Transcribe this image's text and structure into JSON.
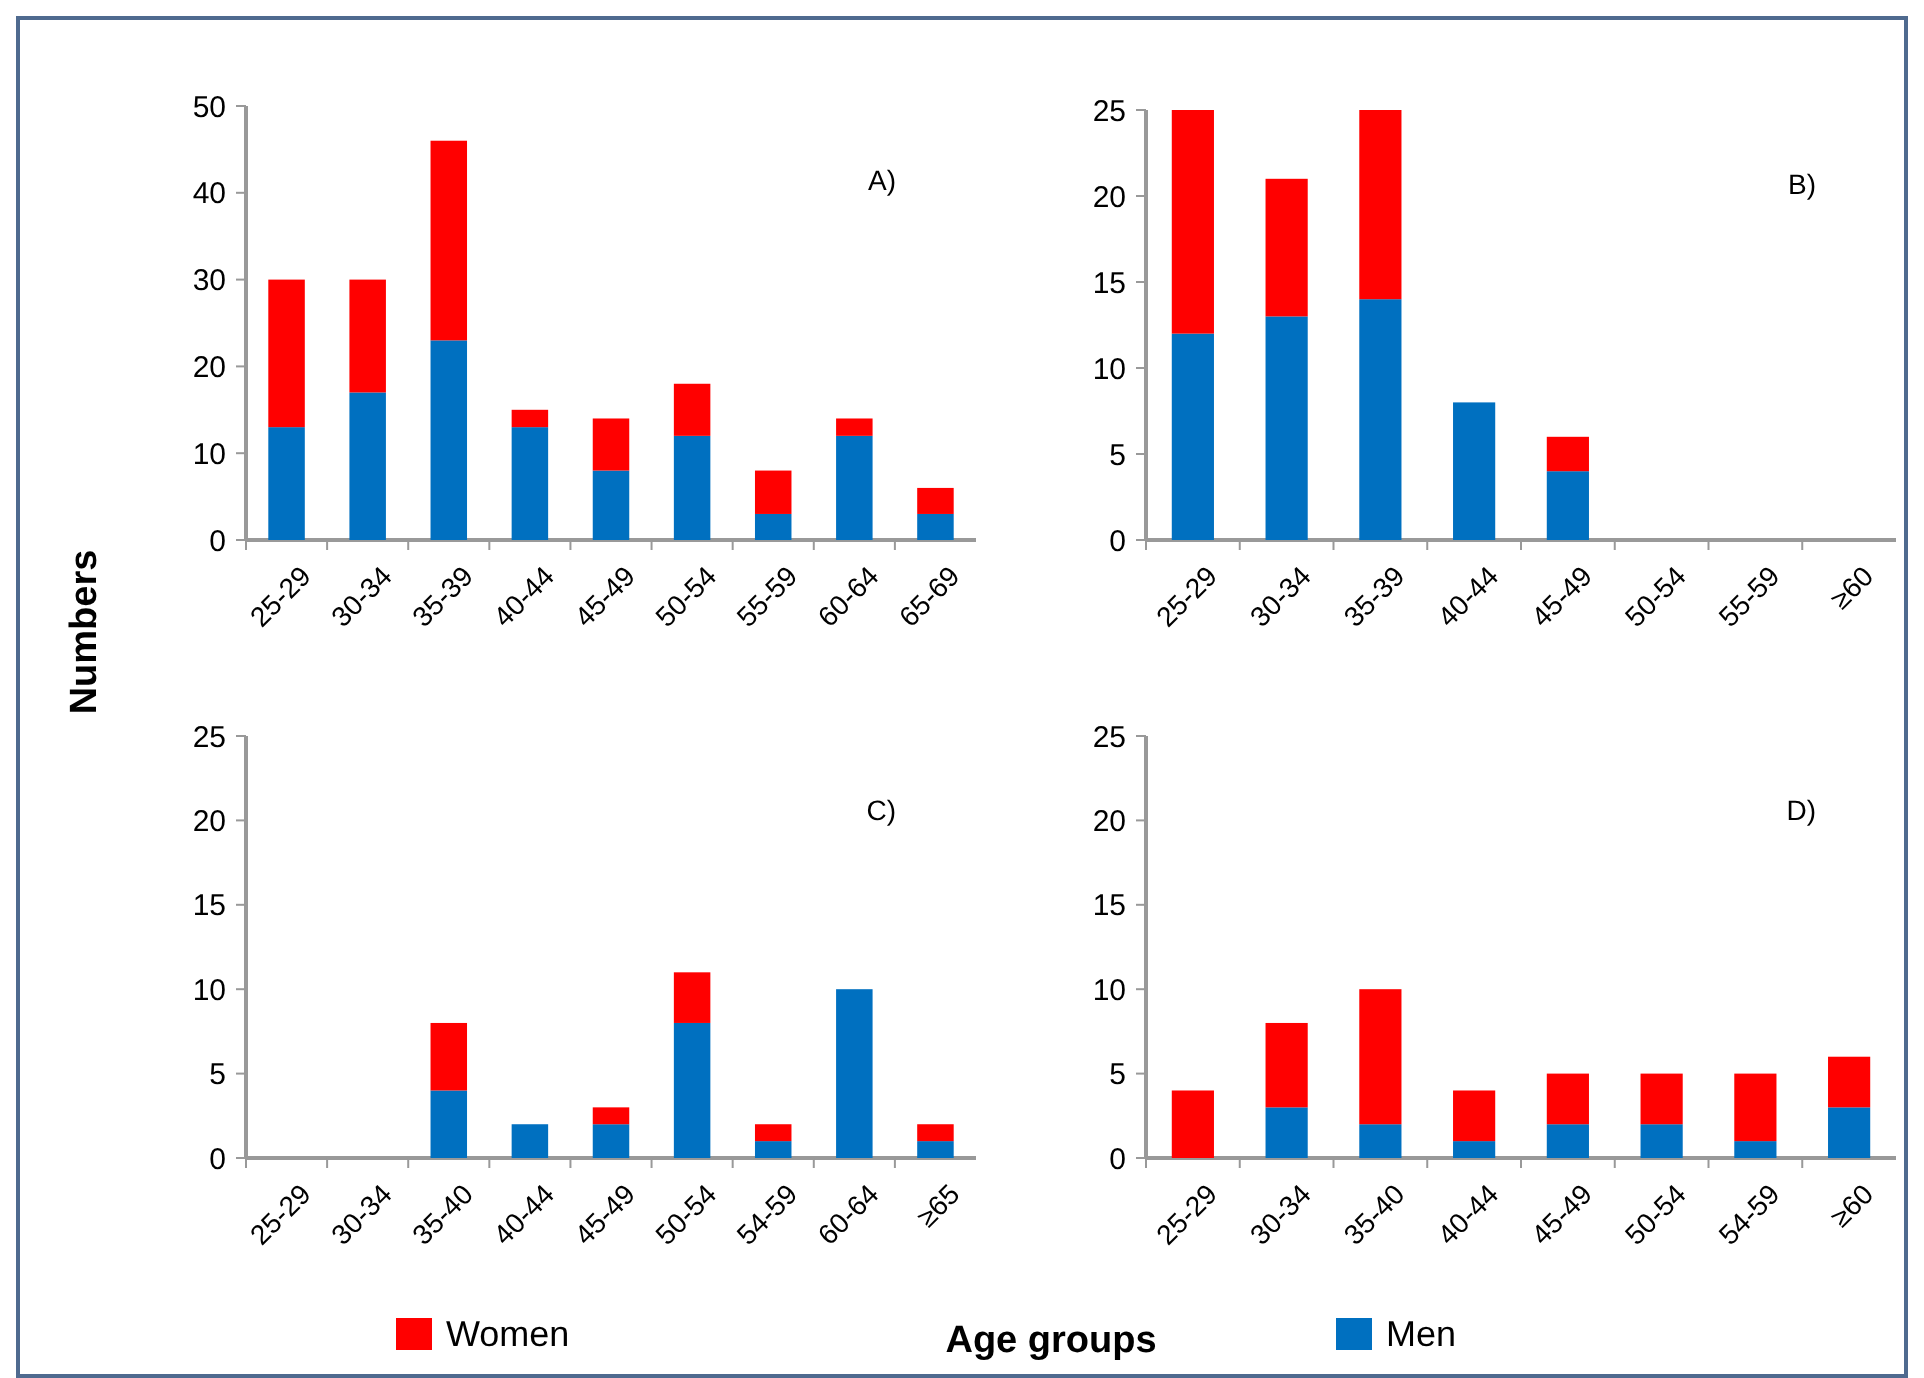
{
  "chart_data": [
    {
      "type": "bar",
      "stacked": true,
      "ylabel": "Numbers",
      "legend": "bottom",
      "annotations": [
        "A)"
      ],
      "categories": [
        "25-29",
        "30-34",
        "35-39",
        "40-44",
        "45-49",
        "50-54",
        "55-59",
        "60-64",
        "65-69"
      ],
      "ylim": [
        0,
        50
      ],
      "yticks": [
        0,
        10,
        20,
        30,
        40,
        50
      ],
      "series": [
        {
          "name": "Men",
          "color": "#0070c0",
          "values": [
            13,
            17,
            23,
            13,
            8,
            12,
            3,
            12,
            3
          ]
        },
        {
          "name": "Women",
          "color": "#ff0000",
          "values": [
            17,
            13,
            23,
            2,
            6,
            6,
            5,
            2,
            3
          ]
        }
      ]
    },
    {
      "type": "bar",
      "stacked": true,
      "annotations": [
        "B)"
      ],
      "categories": [
        "25-29",
        "30-34",
        "35-39",
        "40-44",
        "45-49",
        "50-54",
        "55-59",
        "≥60"
      ],
      "ylim": [
        0,
        25
      ],
      "yticks": [
        0,
        5,
        10,
        15,
        20,
        25
      ],
      "series": [
        {
          "color": "#0070c0",
          "values": [
            12,
            13,
            14,
            8,
            4,
            0,
            0,
            0
          ]
        },
        {
          "color": "#ff0000",
          "values": [
            13,
            8,
            11,
            0,
            2,
            0,
            0,
            0
          ]
        }
      ]
    },
    {
      "type": "bar",
      "stacked": true,
      "xlabel": "Age groups",
      "annotations": [
        "C)"
      ],
      "categories": [
        "25-29",
        "30-34",
        "35-40",
        "40-44",
        "45-49",
        "50-54",
        "54-59",
        "60-64",
        "≥65"
      ],
      "ylim": [
        0,
        25
      ],
      "yticks": [
        0,
        5,
        10,
        15,
        20,
        25
      ],
      "series": [
        {
          "color": "#0070c0",
          "values": [
            0,
            0,
            4,
            2,
            2,
            8,
            1,
            10,
            1
          ]
        },
        {
          "color": "#ff0000",
          "values": [
            0,
            0,
            4,
            0,
            1,
            3,
            1,
            0,
            1
          ]
        }
      ]
    },
    {
      "type": "bar",
      "stacked": true,
      "annotations": [
        "D)"
      ],
      "categories": [
        "25-29",
        "30-34",
        "35-40",
        "40-44",
        "45-49",
        "50-54",
        "54-59",
        "≥60"
      ],
      "ylim": [
        0,
        25
      ],
      "yticks": [
        0,
        5,
        10,
        15,
        20,
        25
      ],
      "series": [
        {
          "color": "#0070c0",
          "values": [
            0,
            3,
            2,
            1,
            2,
            2,
            1,
            3
          ]
        },
        {
          "color": "#ff0000",
          "values": [
            4,
            5,
            8,
            3,
            3,
            3,
            4,
            3
          ]
        }
      ]
    }
  ]
}
